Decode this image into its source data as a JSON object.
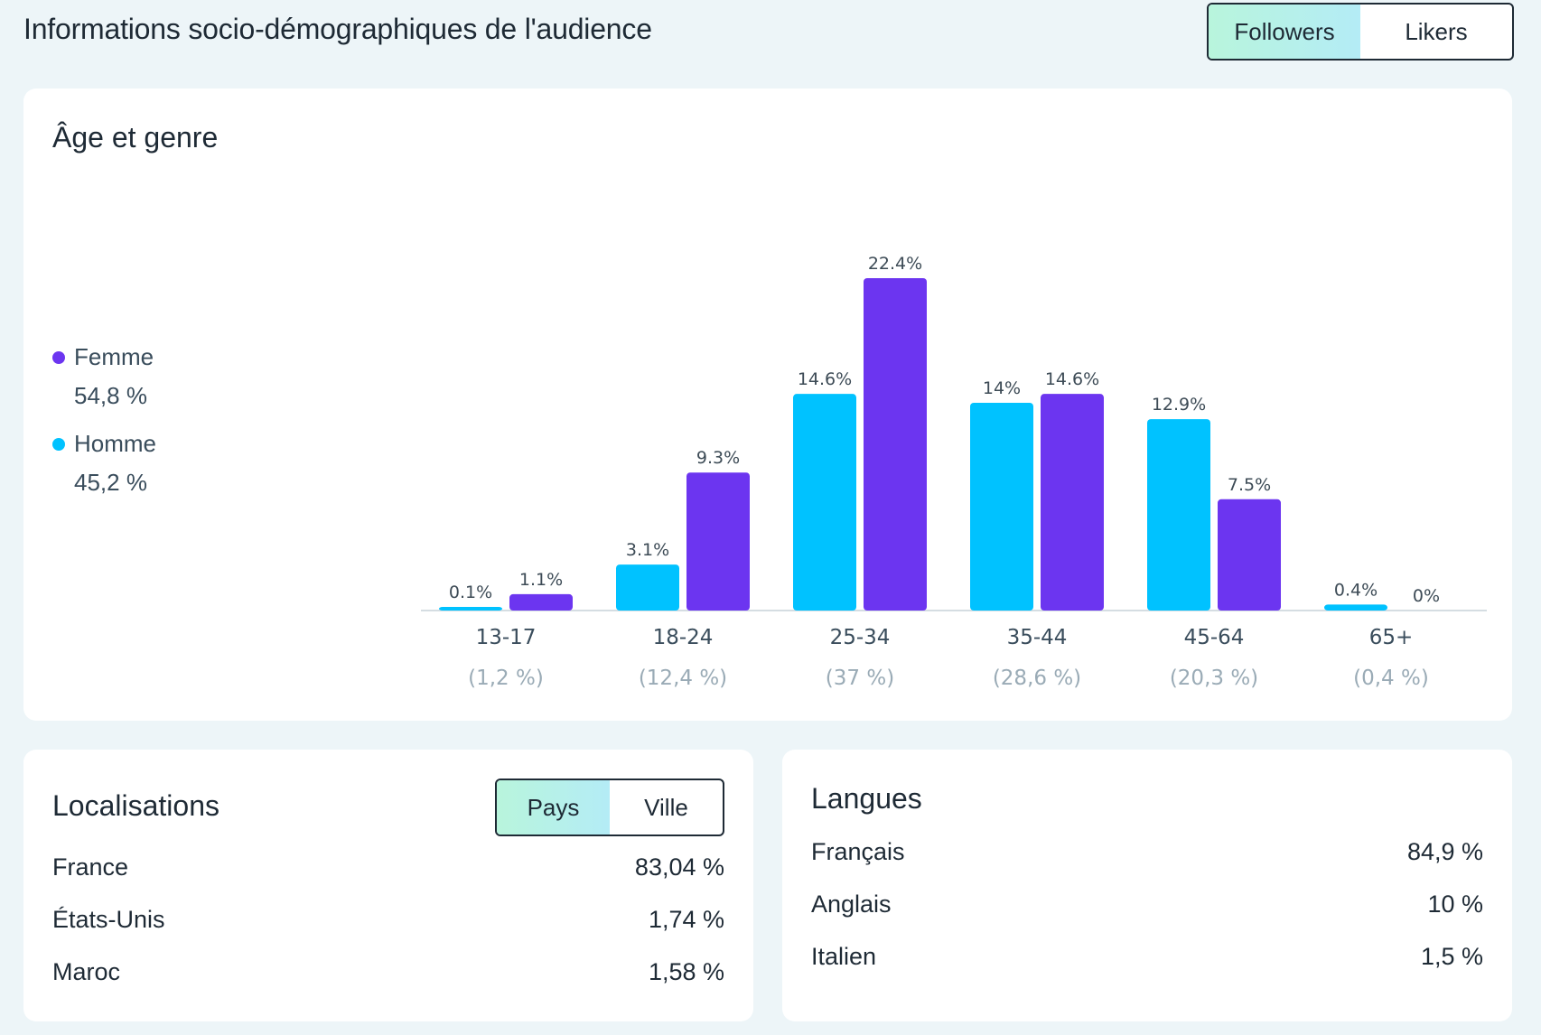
{
  "header": {
    "title": "Informations socio-démographiques de l'audience",
    "toggle": {
      "options": [
        "Followers",
        "Likers"
      ],
      "active": "Followers"
    }
  },
  "age_gender": {
    "title": "Âge et genre",
    "legend": [
      {
        "label": "Femme",
        "value": "54,8 %",
        "color": "#6c35f0"
      },
      {
        "label": "Homme",
        "value": "45,2 %",
        "color": "#00c2ff"
      }
    ]
  },
  "chart_data": {
    "type": "bar",
    "categories": [
      "13-17",
      "18-24",
      "25-34",
      "35-44",
      "45-64",
      "65+"
    ],
    "category_totals": [
      "(1,2 %)",
      "(12,4 %)",
      "(37 %)",
      "(28,6 %)",
      "(20,3 %)",
      "(0,4 %)"
    ],
    "series": [
      {
        "name": "Homme",
        "color": "#00c2ff",
        "values": [
          0.1,
          3.1,
          14.6,
          14,
          12.9,
          0.4
        ],
        "labels": [
          "0.1%",
          "3.1%",
          "14.6%",
          "14%",
          "12.9%",
          "0.4%"
        ]
      },
      {
        "name": "Femme",
        "color": "#6c35f0",
        "values": [
          1.1,
          9.3,
          22.4,
          14.6,
          7.5,
          0
        ],
        "labels": [
          "1.1%",
          "9.3%",
          "22.4%",
          "14.6%",
          "7.5%",
          "0%"
        ]
      }
    ],
    "grid": false,
    "legend_position": "left"
  },
  "locations": {
    "title": "Localisations",
    "toggle": {
      "options": [
        "Pays",
        "Ville"
      ],
      "active": "Pays"
    },
    "rows": [
      {
        "name": "France",
        "value": "83,04 %"
      },
      {
        "name": "États-Unis",
        "value": "1,74 %"
      },
      {
        "name": "Maroc",
        "value": "1,58 %"
      }
    ]
  },
  "languages": {
    "title": "Langues",
    "rows": [
      {
        "name": "Français",
        "value": "84,9 %"
      },
      {
        "name": "Anglais",
        "value": "10 %"
      },
      {
        "name": "Italien",
        "value": "1,5 %"
      }
    ]
  }
}
